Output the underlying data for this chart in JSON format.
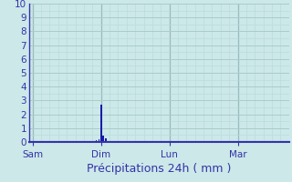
{
  "title": "Précipitations 24h ( mm )",
  "background_color": "#cce8e8",
  "plot_bg_color": "#cce8e8",
  "fig_bg_color": "#cce8e8",
  "bar_color": "#1a1aaa",
  "ylim": [
    0,
    10
  ],
  "yticks": [
    0,
    1,
    2,
    3,
    4,
    5,
    6,
    7,
    8,
    9,
    10
  ],
  "day_labels": [
    "Sam",
    "Dim",
    "Lun",
    "Mar"
  ],
  "day_positions": [
    0.0,
    1.0,
    2.0,
    3.0
  ],
  "xlim": [
    -0.05,
    3.75
  ],
  "bar_x": [
    0.93,
    0.97,
    1.0,
    1.03,
    1.07,
    1.1
  ],
  "bar_heights": [
    0.15,
    0.2,
    2.7,
    0.45,
    0.25,
    0.0
  ],
  "bar_width": 0.025,
  "title_fontsize": 9,
  "tick_fontsize": 7.5,
  "grid_color": "#aacccc",
  "minor_grid_color": "#b8d8d8",
  "major_vgrid_color": "#99bbbb",
  "axis_line_color": "#3333aa",
  "label_color": "#3333aa"
}
